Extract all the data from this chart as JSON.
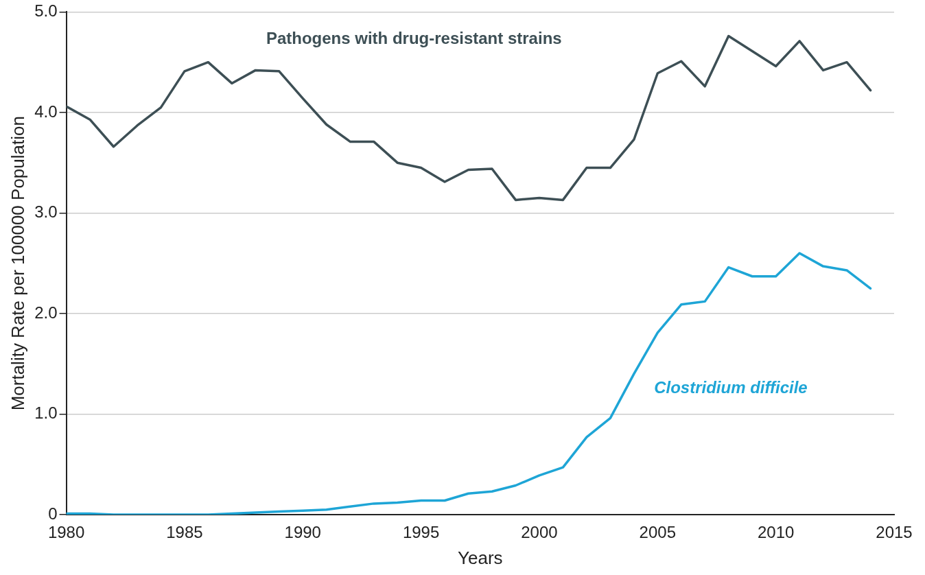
{
  "chart_data": {
    "type": "line",
    "xlabel": "Years",
    "ylabel": "Mortality Rate per 100000 Population",
    "x": [
      1980,
      1981,
      1982,
      1983,
      1984,
      1985,
      1986,
      1987,
      1988,
      1989,
      1990,
      1991,
      1992,
      1993,
      1994,
      1995,
      1996,
      1997,
      1998,
      1999,
      2000,
      2001,
      2002,
      2003,
      2004,
      2005,
      2006,
      2007,
      2008,
      2009,
      2010,
      2011,
      2012,
      2013,
      2014
    ],
    "series": [
      {
        "name": "Pathogens with drug-resistant strains",
        "color": "#3d4f55",
        "values": [
          4.06,
          3.93,
          3.66,
          3.87,
          4.05,
          4.41,
          4.5,
          4.29,
          4.42,
          4.41,
          4.14,
          3.88,
          3.71,
          3.71,
          3.5,
          3.45,
          3.31,
          3.43,
          3.44,
          3.13,
          3.15,
          3.13,
          3.45,
          3.45,
          3.73,
          4.39,
          4.51,
          4.26,
          4.76,
          4.61,
          4.46,
          4.71,
          4.42,
          4.5,
          4.22
        ]
      },
      {
        "name": "Clostridium difficile",
        "color": "#1ea5d6",
        "values": [
          0.01,
          0.01,
          0,
          0,
          0,
          0,
          0,
          0.01,
          0.02,
          0.03,
          0.04,
          0.05,
          0.08,
          0.11,
          0.12,
          0.14,
          0.14,
          0.21,
          0.23,
          0.29,
          0.39,
          0.47,
          0.77,
          0.96,
          1.4,
          1.81,
          2.09,
          2.12,
          2.46,
          2.37,
          2.37,
          2.6,
          2.47,
          2.43,
          2.25
        ]
      }
    ],
    "xlim": [
      1980,
      2015
    ],
    "xticks": [
      1980,
      1985,
      1990,
      1995,
      2000,
      2005,
      2010,
      2015
    ],
    "ylim": [
      0,
      5
    ],
    "yticks": [
      {
        "value": 0,
        "label": "0"
      },
      {
        "value": 1,
        "label": "1.0"
      },
      {
        "value": 2,
        "label": "2.0"
      },
      {
        "value": 3,
        "label": "3.0"
      },
      {
        "value": 4,
        "label": "4.0"
      },
      {
        "value": 5,
        "label": "5.0"
      }
    ],
    "grid": "y",
    "legend": false,
    "marker": "none",
    "line_style": "solid"
  }
}
